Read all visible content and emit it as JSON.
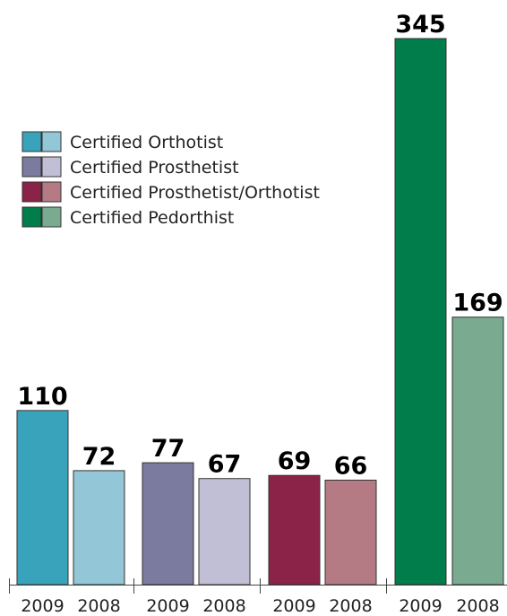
{
  "chart_data": {
    "type": "bar",
    "categories": [
      "2009",
      "2008"
    ],
    "series": [
      {
        "name": "Certified Orthotist",
        "colors": [
          "#3aa3bc",
          "#93c6d6"
        ],
        "values": [
          110,
          72
        ]
      },
      {
        "name": "Certified Prosthetist",
        "colors": [
          "#7b7ba0",
          "#c0bfd6"
        ],
        "values": [
          77,
          67
        ]
      },
      {
        "name": "Certified Prosthetist/Orthotist",
        "colors": [
          "#8a2347",
          "#b57b85"
        ],
        "values": [
          69,
          66
        ]
      },
      {
        "name": "Certified Pedorthist",
        "colors": [
          "#007d4a",
          "#7aaa8f"
        ],
        "values": [
          345,
          169
        ]
      }
    ]
  }
}
